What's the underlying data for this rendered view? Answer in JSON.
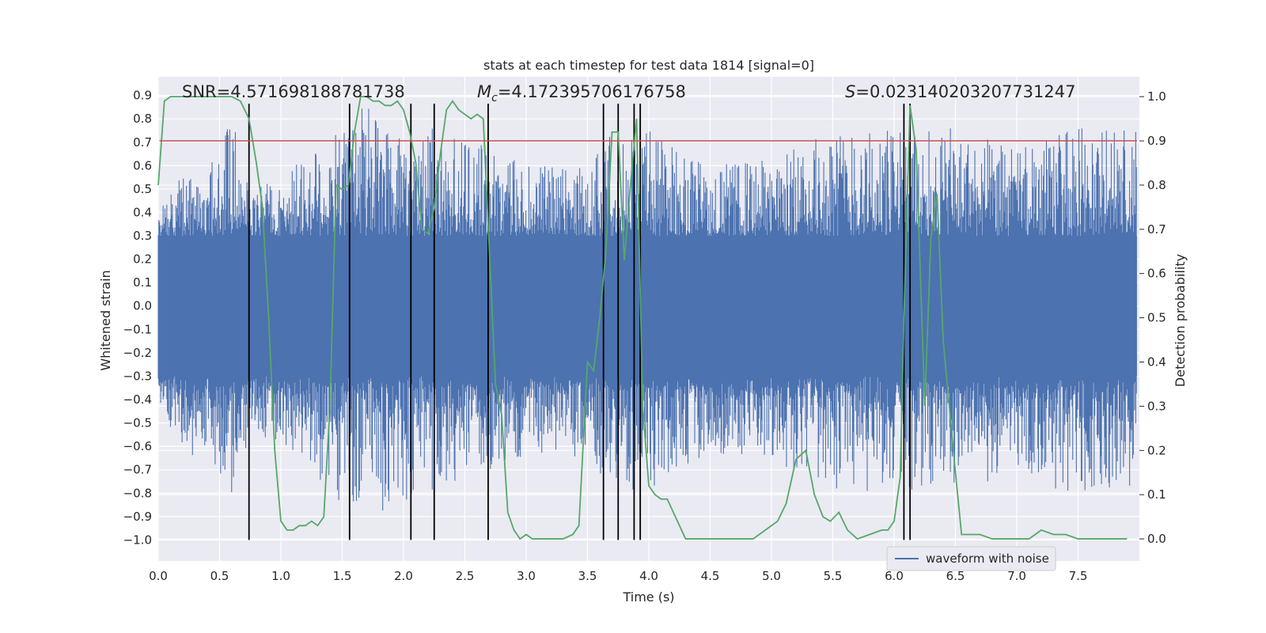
{
  "chart_data": {
    "type": "line",
    "title": "stats at each timestep for test data 1814 [signal=0]",
    "xlabel": "Time (s)",
    "ylabel_left": "Whitened strain",
    "ylabel_right": "Detection probability",
    "xlim": [
      0.0,
      8.0
    ],
    "ylim_left": [
      -1.09,
      0.98
    ],
    "ylim_right": [
      -0.05,
      1.045
    ],
    "x_ticks": [
      "0.0",
      "0.5",
      "1.0",
      "1.5",
      "2.0",
      "2.5",
      "3.0",
      "3.5",
      "4.0",
      "4.5",
      "5.0",
      "5.5",
      "6.0",
      "6.5",
      "7.0",
      "7.5"
    ],
    "y_ticks_left": [
      "0.9",
      "0.8",
      "0.7",
      "0.6",
      "0.5",
      "0.4",
      "0.3",
      "0.2",
      "0.1",
      "0.0",
      "−0.1",
      "−0.2",
      "−0.3",
      "−0.4",
      "−0.5",
      "−0.6",
      "−0.7",
      "−0.8",
      "−0.9",
      "−1.0"
    ],
    "y_ticks_right": [
      "1.0",
      "0.9",
      "0.8",
      "0.7",
      "0.6",
      "0.5",
      "0.4",
      "0.3",
      "0.2",
      "0.1",
      "0.0"
    ],
    "grid": true,
    "annotations": {
      "snr_text": "SNR=4.571698188781738",
      "mc_prefix": "M",
      "mc_sub": "c",
      "mc_value": "=4.172395706176758",
      "s_prefix": "S",
      "s_value": "=0.023140203207731247"
    },
    "threshold": {
      "value": 0.9,
      "axis": "right",
      "color": "#c44e52"
    },
    "vertical_lines": [
      0.74,
      1.56,
      2.06,
      2.25,
      2.69,
      3.63,
      3.75,
      3.88,
      3.93,
      6.08,
      6.13
    ],
    "vertical_line_top_left": 0.865,
    "vertical_line_bottom_left": -1.0,
    "series": [
      {
        "name": "waveform with noise",
        "axis": "left",
        "color": "#4c72b0",
        "band_core": 0.3,
        "envelope": [
          [
            0.0,
            0.38
          ],
          [
            0.15,
            0.57
          ],
          [
            0.3,
            0.6
          ],
          [
            0.45,
            0.62
          ],
          [
            0.6,
            0.8
          ],
          [
            0.75,
            0.5
          ],
          [
            1.0,
            0.55
          ],
          [
            1.5,
            0.8
          ],
          [
            1.7,
            0.86
          ],
          [
            2.0,
            0.8
          ],
          [
            2.5,
            0.72
          ],
          [
            3.0,
            0.6
          ],
          [
            3.5,
            0.6
          ],
          [
            3.68,
            0.74
          ],
          [
            3.95,
            0.78
          ],
          [
            4.5,
            0.6
          ],
          [
            5.0,
            0.63
          ],
          [
            5.6,
            0.78
          ],
          [
            6.1,
            0.75
          ],
          [
            6.5,
            0.76
          ],
          [
            7.0,
            0.67
          ],
          [
            7.5,
            0.78
          ],
          [
            7.9,
            0.75
          ]
        ]
      },
      {
        "name": "",
        "axis": "right",
        "color": "#55a868",
        "x": [
          0.0,
          0.05,
          0.1,
          0.2,
          0.3,
          0.4,
          0.5,
          0.6,
          0.67,
          0.74,
          0.8,
          0.85,
          0.9,
          0.95,
          1.0,
          1.05,
          1.1,
          1.15,
          1.2,
          1.25,
          1.3,
          1.35,
          1.4,
          1.45,
          1.5,
          1.55,
          1.6,
          1.65,
          1.7,
          1.75,
          1.8,
          1.85,
          1.9,
          1.95,
          2.0,
          2.05,
          2.1,
          2.15,
          2.2,
          2.25,
          2.3,
          2.35,
          2.4,
          2.45,
          2.5,
          2.55,
          2.6,
          2.65,
          2.7,
          2.75,
          2.8,
          2.85,
          2.9,
          2.95,
          3.0,
          3.05,
          3.1,
          3.2,
          3.3,
          3.38,
          3.43,
          3.5,
          3.55,
          3.6,
          3.65,
          3.7,
          3.75,
          3.8,
          3.85,
          3.9,
          3.95,
          4.0,
          4.05,
          4.1,
          4.15,
          4.2,
          4.3,
          4.4,
          4.6,
          4.75,
          4.85,
          4.95,
          5.05,
          5.12,
          5.2,
          5.28,
          5.35,
          5.42,
          5.48,
          5.55,
          5.62,
          5.7,
          5.8,
          5.9,
          5.95,
          6.0,
          6.05,
          6.08,
          6.13,
          6.18,
          6.25,
          6.3,
          6.35,
          6.4,
          6.45,
          6.5,
          6.55,
          6.6,
          6.7,
          6.8,
          7.0,
          7.1,
          7.15,
          7.2,
          7.3,
          7.4,
          7.5,
          7.6,
          7.9
        ],
        "y": [
          0.8,
          0.99,
          1.0,
          1.0,
          1.0,
          1.0,
          1.0,
          1.0,
          0.99,
          0.95,
          0.85,
          0.75,
          0.5,
          0.2,
          0.04,
          0.02,
          0.02,
          0.03,
          0.03,
          0.04,
          0.03,
          0.05,
          0.3,
          0.8,
          0.79,
          0.8,
          0.92,
          1.0,
          1.0,
          0.99,
          0.99,
          0.98,
          0.98,
          0.99,
          0.97,
          0.92,
          0.85,
          0.7,
          0.69,
          0.75,
          0.87,
          0.97,
          0.99,
          0.97,
          0.96,
          0.95,
          0.96,
          0.95,
          0.65,
          0.35,
          0.28,
          0.06,
          0.02,
          0.0,
          0.01,
          0.0,
          0.0,
          0.0,
          0.0,
          0.01,
          0.03,
          0.4,
          0.38,
          0.5,
          0.65,
          0.92,
          0.92,
          0.63,
          0.8,
          0.95,
          0.3,
          0.12,
          0.1,
          0.09,
          0.09,
          0.06,
          0.0,
          0.0,
          0.0,
          0.0,
          0.0,
          0.02,
          0.04,
          0.08,
          0.18,
          0.2,
          0.1,
          0.05,
          0.04,
          0.06,
          0.02,
          0.0,
          0.01,
          0.02,
          0.02,
          0.04,
          0.14,
          0.5,
          0.98,
          0.88,
          0.3,
          0.68,
          0.78,
          0.45,
          0.3,
          0.15,
          0.01,
          0.01,
          0.01,
          0.0,
          0.0,
          0.0,
          0.01,
          0.02,
          0.01,
          0.01,
          0.0,
          0.0,
          0.0
        ]
      }
    ],
    "legend": {
      "placement": "lower-center-right",
      "entries": [
        "waveform with noise"
      ]
    }
  }
}
